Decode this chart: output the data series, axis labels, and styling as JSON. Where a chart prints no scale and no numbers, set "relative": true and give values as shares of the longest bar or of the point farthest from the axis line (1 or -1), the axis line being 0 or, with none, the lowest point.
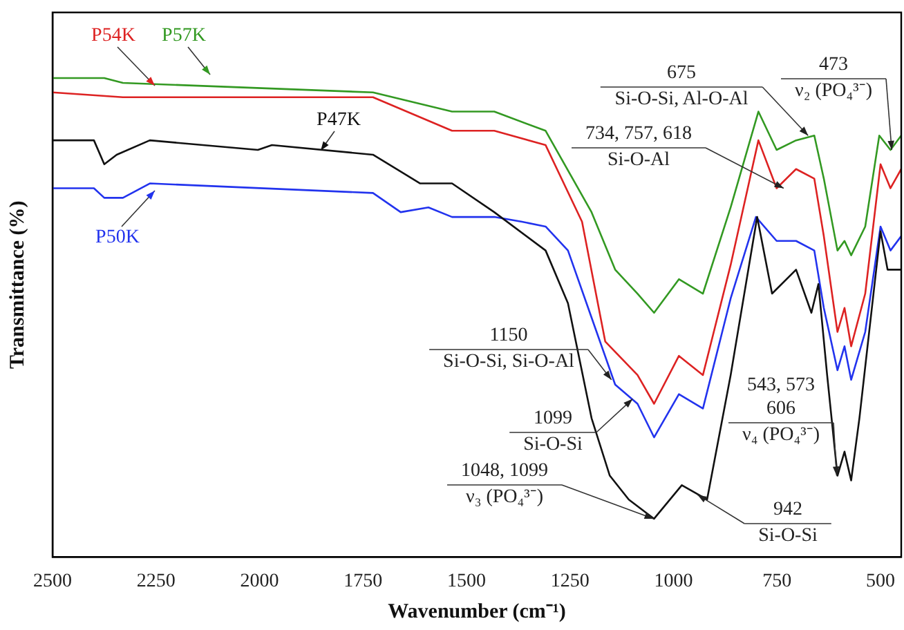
{
  "chart_data": {
    "type": "line",
    "relative": true,
    "xlabel": "Wavenumber (cm⁻¹)",
    "ylabel": "Transmittance (%)",
    "xlim": [
      2500,
      450
    ],
    "xticks": [
      2500,
      2250,
      2000,
      1750,
      1500,
      1250,
      1000,
      750,
      500
    ],
    "grid": false,
    "legend": false,
    "marker": "none",
    "line_style": "solid",
    "series": [
      {
        "name": "P57K",
        "color": "#339922",
        "x": [
          2500,
          2375,
          2330,
          1726,
          1535,
          1433,
          1309,
          1198,
          1141,
          1087,
          1047,
          987,
          929,
          862,
          795,
          751,
          704,
          660,
          637,
          604,
          587,
          571,
          537,
          503,
          476,
          450
        ],
        "values": [
          1.0,
          1.0,
          0.99,
          0.97,
          0.93,
          0.93,
          0.89,
          0.72,
          0.6,
          0.55,
          0.51,
          0.58,
          0.55,
          0.73,
          0.93,
          0.85,
          0.87,
          0.88,
          0.79,
          0.64,
          0.66,
          0.63,
          0.69,
          0.88,
          0.85,
          0.88
        ]
      },
      {
        "name": "P54K",
        "color": "#dd2222",
        "x": [
          2500,
          2330,
          1726,
          1535,
          1433,
          1309,
          1221,
          1165,
          1087,
          1047,
          987,
          929,
          862,
          795,
          751,
          704,
          660,
          637,
          604,
          587,
          571,
          537,
          500,
          476,
          450
        ],
        "values": [
          0.97,
          0.96,
          0.96,
          0.89,
          0.89,
          0.86,
          0.7,
          0.45,
          0.38,
          0.32,
          0.42,
          0.38,
          0.61,
          0.87,
          0.77,
          0.81,
          0.79,
          0.67,
          0.47,
          0.52,
          0.44,
          0.55,
          0.82,
          0.77,
          0.81
        ]
      },
      {
        "name": "P47K",
        "color": "#111111",
        "x": [
          2500,
          2400,
          2375,
          2345,
          2265,
          2004,
          1970,
          1726,
          1612,
          1535,
          1433,
          1309,
          1255,
          1198,
          1154,
          1108,
          1047,
          980,
          919,
          862,
          798,
          762,
          704,
          667,
          650,
          629,
          604,
          587,
          571,
          551,
          500,
          483,
          450
        ],
        "values": [
          0.87,
          0.87,
          0.82,
          0.84,
          0.87,
          0.85,
          0.86,
          0.84,
          0.78,
          0.78,
          0.72,
          0.64,
          0.53,
          0.29,
          0.17,
          0.12,
          0.08,
          0.15,
          0.12,
          0.38,
          0.71,
          0.55,
          0.6,
          0.51,
          0.57,
          0.38,
          0.17,
          0.22,
          0.16,
          0.29,
          0.68,
          0.6,
          0.6
        ]
      },
      {
        "name": "P50K",
        "color": "#2233ee",
        "x": [
          2500,
          2400,
          2375,
          2330,
          2265,
          1726,
          1659,
          1592,
          1535,
          1433,
          1366,
          1309,
          1255,
          1198,
          1141,
          1087,
          1047,
          987,
          929,
          862,
          801,
          751,
          704,
          660,
          637,
          604,
          587,
          571,
          537,
          500,
          476,
          450
        ],
        "values": [
          0.77,
          0.77,
          0.75,
          0.75,
          0.78,
          0.76,
          0.72,
          0.73,
          0.71,
          0.71,
          0.7,
          0.69,
          0.64,
          0.5,
          0.36,
          0.32,
          0.25,
          0.34,
          0.31,
          0.54,
          0.71,
          0.66,
          0.66,
          0.64,
          0.52,
          0.39,
          0.44,
          0.37,
          0.47,
          0.69,
          0.64,
          0.67
        ]
      }
    ],
    "annotations": [
      {
        "text": "473\nν₂ (PO₄³⁻)",
        "x": 473,
        "y": 0.85
      },
      {
        "text": "675\nSi-O-Si, Al-O-Al",
        "x": 675,
        "y": 0.88
      },
      {
        "text": "734, 757, 618\nSi-O-Al",
        "x": 734,
        "y": 0.77
      },
      {
        "text": "1150\nSi-O-Si, Si-O-Al",
        "x": 1150,
        "y": 0.37
      },
      {
        "text": "1099\nSi-O-Si",
        "x": 1099,
        "y": 0.33
      },
      {
        "text": "1048, 1099\nν₃ (PO₄³⁻)",
        "x": 1048,
        "y": 0.08
      },
      {
        "text": "942\nSi-O-Si",
        "x": 942,
        "y": 0.13
      },
      {
        "text": "543, 573\n606\nν₄ (PO₄³⁻)",
        "x": 606,
        "y": 0.17
      }
    ]
  }
}
